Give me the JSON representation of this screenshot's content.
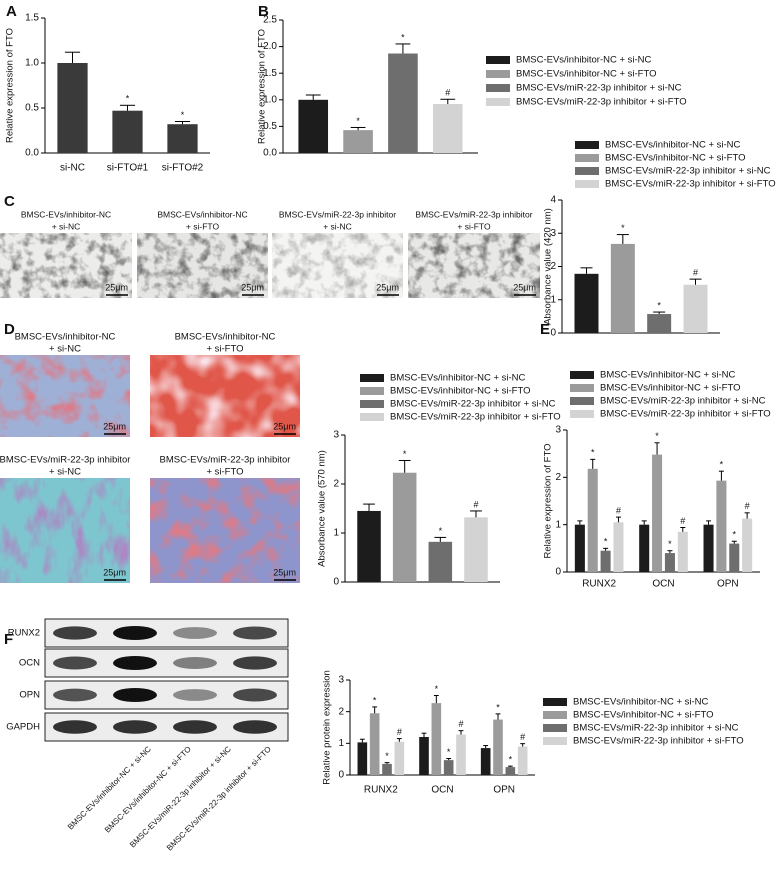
{
  "panel_letters": [
    "A",
    "B",
    "C",
    "D",
    "E",
    "F"
  ],
  "chart_data": [
    {
      "type": "bar",
      "ylabel": "Relative expression of FTO",
      "categories": [
        "si-NC",
        "si-FTO#1",
        "si-FTO#2"
      ],
      "values": [
        1.0,
        0.47,
        0.32
      ],
      "errors": [
        0.12,
        0.06,
        0.03
      ],
      "annotations": [
        null,
        "*",
        "*"
      ],
      "color": "#3a3a3a",
      "ylim": [
        0,
        1.5
      ],
      "yticks": [
        {
          "value": 0,
          "label": "0.0"
        },
        {
          "value": 0.5,
          "label": "0.5"
        },
        {
          "value": 1,
          "label": "1.0"
        },
        {
          "value": 1.5,
          "label": "1.5"
        }
      ]
    },
    {
      "type": "bar",
      "ylabel": "Relative expression of FTO",
      "categories": [
        null
      ],
      "legend": "right",
      "series": [
        {
          "name": "BMSC-EVs/inhibitor-NC + si-NC",
          "color": "#1c1c1c",
          "values": [
            1.0
          ],
          "errors": [
            0.09
          ],
          "annotations": [
            null
          ]
        },
        {
          "name": "BMSC-EVs/inhibitor-NC + si-FTO",
          "color": "#9b9b9b",
          "values": [
            0.43
          ],
          "errors": [
            0.05
          ],
          "annotations": [
            "*"
          ]
        },
        {
          "name": "BMSC-EVs/miR-22-3p inhibitor + si-NC",
          "color": "#6e6e6e",
          "values": [
            1.87
          ],
          "errors": [
            0.18
          ],
          "annotations": [
            "*"
          ]
        },
        {
          "name": "BMSC-EVs/miR-22-3p inhibitor + si-FTO",
          "color": "#d3d3d3",
          "values": [
            0.92
          ],
          "errors": [
            0.09
          ],
          "annotations": [
            "#"
          ]
        }
      ],
      "ylim": [
        0,
        2.5
      ],
      "yticks": [
        {
          "value": 0,
          "label": "0.0"
        },
        {
          "value": 0.5,
          "label": "0.5"
        },
        {
          "value": 1,
          "label": "1.0"
        },
        {
          "value": 1.5,
          "label": "1.5"
        },
        {
          "value": 2,
          "label": "2.0"
        },
        {
          "value": 2.5,
          "label": "2.5"
        }
      ]
    },
    {
      "type": "bar",
      "ylabel": "Absorbance value (420 nm)",
      "categories": [
        null
      ],
      "legend": "top",
      "series": [
        {
          "name": "BMSC-EVs/inhibitor-NC + si-NC",
          "color": "#1c1c1c",
          "values": [
            1.78
          ],
          "errors": [
            0.18
          ],
          "annotations": [
            null
          ]
        },
        {
          "name": "BMSC-EVs/inhibitor-NC + si-FTO",
          "color": "#9b9b9b",
          "values": [
            2.68
          ],
          "errors": [
            0.28
          ],
          "annotations": [
            "*"
          ]
        },
        {
          "name": "BMSC-EVs/miR-22-3p inhibitor + si-NC",
          "color": "#6e6e6e",
          "values": [
            0.57
          ],
          "errors": [
            0.06
          ],
          "annotations": [
            "*"
          ]
        },
        {
          "name": "BMSC-EVs/miR-22-3p inhibitor + si-FTO",
          "color": "#d3d3d3",
          "values": [
            1.45
          ],
          "errors": [
            0.17
          ],
          "annotations": [
            "#"
          ]
        }
      ],
      "ylim": [
        0,
        4
      ],
      "yticks": [
        0,
        1,
        2,
        3,
        4
      ]
    },
    {
      "type": "bar",
      "ylabel": "Absorbance value (570 nm)",
      "categories": [
        null
      ],
      "legend": "top",
      "series": [
        {
          "name": "BMSC-EVs/inhibitor-NC + si-NC",
          "color": "#1c1c1c",
          "values": [
            1.45
          ],
          "errors": [
            0.14
          ],
          "annotations": [
            null
          ]
        },
        {
          "name": "BMSC-EVs/inhibitor-NC + si-FTO",
          "color": "#9b9b9b",
          "values": [
            2.23
          ],
          "errors": [
            0.25
          ],
          "annotations": [
            "*"
          ]
        },
        {
          "name": "BMSC-EVs/miR-22-3p inhibitor + si-NC",
          "color": "#6e6e6e",
          "values": [
            0.82
          ],
          "errors": [
            0.09
          ],
          "annotations": [
            "*"
          ]
        },
        {
          "name": "BMSC-EVs/miR-22-3p inhibitor + si-FTO",
          "color": "#d3d3d3",
          "values": [
            1.32
          ],
          "errors": [
            0.13
          ],
          "annotations": [
            "#"
          ]
        }
      ],
      "ylim": [
        0,
        3
      ],
      "yticks": [
        0,
        1,
        2,
        3
      ]
    },
    {
      "type": "bar",
      "ylabel": "Relative expression of FTO",
      "categories": [
        "RUNX2",
        "OCN",
        "OPN"
      ],
      "legend": "top",
      "series": [
        {
          "name": "BMSC-EVs/inhibitor-NC + si-NC",
          "color": "#1c1c1c",
          "values": [
            1.0,
            1.0,
            1.0
          ],
          "errors": [
            0.08,
            0.08,
            0.08
          ],
          "annotations": [
            null,
            null,
            null
          ]
        },
        {
          "name": "BMSC-EVs/inhibitor-NC + si-FTO",
          "color": "#9b9b9b",
          "values": [
            2.18,
            2.48,
            1.93
          ],
          "errors": [
            0.2,
            0.25,
            0.2
          ],
          "annotations": [
            "*",
            "*",
            "*"
          ]
        },
        {
          "name": "BMSC-EVs/miR-22-3p inhibitor + si-NC",
          "color": "#6e6e6e",
          "values": [
            0.45,
            0.4,
            0.6
          ],
          "errors": [
            0.05,
            0.05,
            0.05
          ],
          "annotations": [
            "*",
            "*",
            "*"
          ]
        },
        {
          "name": "BMSC-EVs/miR-22-3p inhibitor + si-FTO",
          "color": "#d3d3d3",
          "values": [
            1.05,
            0.85,
            1.13
          ],
          "errors": [
            0.11,
            0.09,
            0.12
          ],
          "annotations": [
            "#",
            "#",
            "#"
          ]
        }
      ],
      "ylim": [
        0,
        3
      ],
      "yticks": [
        0,
        1,
        2,
        3
      ]
    },
    {
      "type": "bar",
      "ylabel": "Relative protein expression",
      "categories": [
        "RUNX2",
        "OCN",
        "OPN"
      ],
      "legend": "right",
      "series": [
        {
          "name": "BMSC-EVs/inhibitor-NC + si-NC",
          "color": "#1c1c1c",
          "values": [
            1.03,
            1.2,
            0.85
          ],
          "errors": [
            0.1,
            0.12,
            0.08
          ],
          "annotations": [
            null,
            null,
            null
          ]
        },
        {
          "name": "BMSC-EVs/inhibitor-NC + si-FTO",
          "color": "#9b9b9b",
          "values": [
            1.95,
            2.27,
            1.75
          ],
          "errors": [
            0.2,
            0.24,
            0.18
          ],
          "annotations": [
            "*",
            "*",
            "*"
          ]
        },
        {
          "name": "BMSC-EVs/miR-22-3p inhibitor + si-NC",
          "color": "#6e6e6e",
          "values": [
            0.35,
            0.47,
            0.25
          ],
          "errors": [
            0.04,
            0.05,
            0.03
          ],
          "annotations": [
            "*",
            "*",
            "*"
          ]
        },
        {
          "name": "BMSC-EVs/miR-22-3p inhibitor + si-FTO",
          "color": "#d3d3d3",
          "values": [
            1.05,
            1.28,
            0.9
          ],
          "errors": [
            0.1,
            0.12,
            0.09
          ],
          "annotations": [
            "#",
            "#",
            "#"
          ]
        }
      ],
      "ylim": [
        0,
        3
      ],
      "yticks": [
        0,
        1,
        2,
        3
      ]
    }
  ],
  "images": {
    "C": {
      "scale_bar": "25μm",
      "labels": [
        [
          "BMSC-EVs/inhibitor-NC",
          "+ si-NC"
        ],
        [
          "BMSC-EVs/inhibitor-NC",
          "+ si-FTO"
        ],
        [
          "BMSC-EVs/miR-22-3p inhibitor",
          "+ si-NC"
        ],
        [
          "BMSC-EVs/miR-22-3p inhibitor",
          "+ si-FTO"
        ]
      ]
    },
    "D": {
      "scale_bar": "25μm",
      "labels": [
        [
          "BMSC-EVs/inhibitor-NC",
          "+ si-NC"
        ],
        [
          "BMSC-EVs/inhibitor-NC",
          "+ si-FTO"
        ],
        [
          "BMSC-EVs/miR-22-3p inhibitor",
          "+ si-NC"
        ],
        [
          "BMSC-EVs/miR-22-3p inhibitor",
          "+ si-FTO"
        ]
      ]
    },
    "F": {
      "row_labels": [
        "RUNX2",
        "OCN",
        "OPN",
        "GAPDH"
      ],
      "column_labels": [
        "BMSC-EVs/inhibitor-NC + si-NC",
        "BMSC-EVs/inhibitor-NC + si-FTO",
        "BMSC-EVs/miR-22-3p inhibitor + si-NC",
        "BMSC-EVs/miR-22-3p inhibitor + si-FTO"
      ]
    }
  }
}
